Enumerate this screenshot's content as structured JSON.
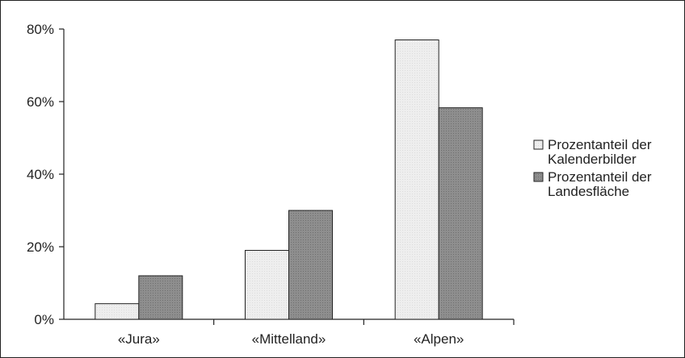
{
  "chart_data": {
    "type": "bar",
    "categories": [
      "«Jura»",
      "«Mittelland»",
      "«Alpen»"
    ],
    "series": [
      {
        "name": "Prozentanteil der Kalenderbilder",
        "legend_lines": [
          "Prozentanteil der",
          "Kalenderbilder"
        ],
        "values": [
          4.3,
          19,
          77
        ],
        "color": "#ececec"
      },
      {
        "name": "Prozentanteil der Landesfläche",
        "legend_lines": [
          "Prozentanteil der",
          "Landesfläche"
        ],
        "values": [
          12,
          30,
          58.3
        ],
        "color": "#8c8c8c"
      }
    ],
    "yticks": [
      "0%",
      "20%",
      "40%",
      "60%",
      "80%"
    ],
    "ytick_values": [
      0,
      20,
      40,
      60,
      80
    ],
    "ylim": [
      0,
      80
    ],
    "grid": false,
    "legend_position": "right",
    "title": "",
    "xlabel": "",
    "ylabel": ""
  }
}
